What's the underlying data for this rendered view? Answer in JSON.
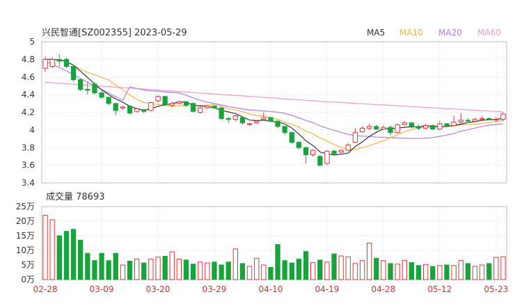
{
  "chart_data": [
    {
      "type": "candlestick",
      "title": "兴民智通[SZ002355] 2023-05-29",
      "ylim": [
        3.4,
        5
      ],
      "yticks": [
        "5",
        "4.8",
        "4.6",
        "4.4",
        "4.2",
        "4",
        "3.8",
        "3.6",
        "3.4"
      ],
      "legend_position": "top-right",
      "legend": [
        "MA5",
        "MA10",
        "MA20",
        "MA60"
      ],
      "colors": {
        "up": "#e0323c",
        "down": "#1aa33c",
        "MA5": "#333333",
        "MA10": "#f2b447",
        "MA20": "#b37be6",
        "MA60": "#f09ac6"
      },
      "x_ticks": [
        "02-28",
        "03-09",
        "03-20",
        "03-29",
        "04-10",
        "04-19",
        "04-28",
        "05-12",
        "05-23"
      ],
      "x_tick_index": [
        0,
        8,
        16,
        24,
        32,
        40,
        48,
        56,
        64
      ],
      "ohlc": [
        [
          4.7,
          4.8,
          4.66,
          4.83
        ],
        [
          4.72,
          4.8,
          4.7,
          4.82
        ],
        [
          4.8,
          4.78,
          4.72,
          4.86
        ],
        [
          4.8,
          4.72,
          4.7,
          4.82
        ],
        [
          4.72,
          4.57,
          4.55,
          4.74
        ],
        [
          4.57,
          4.46,
          4.44,
          4.58
        ],
        [
          4.46,
          4.45,
          4.4,
          4.54
        ],
        [
          4.52,
          4.42,
          4.4,
          4.54
        ],
        [
          4.42,
          4.37,
          4.35,
          4.44
        ],
        [
          4.37,
          4.3,
          4.28,
          4.38
        ],
        [
          4.3,
          4.22,
          4.17,
          4.31
        ],
        [
          4.25,
          4.26,
          4.23,
          4.27
        ],
        [
          4.27,
          4.19,
          4.18,
          4.28
        ],
        [
          4.21,
          4.24,
          4.2,
          4.25
        ],
        [
          4.23,
          4.21,
          4.19,
          4.24
        ],
        [
          4.22,
          4.31,
          4.21,
          4.32
        ],
        [
          4.33,
          4.38,
          4.31,
          4.39
        ],
        [
          4.38,
          4.29,
          4.27,
          4.39
        ],
        [
          4.28,
          4.3,
          4.26,
          4.32
        ],
        [
          4.3,
          4.32,
          4.29,
          4.33
        ],
        [
          4.32,
          4.28,
          4.26,
          4.33
        ],
        [
          4.3,
          4.21,
          4.2,
          4.31
        ],
        [
          4.2,
          4.25,
          4.18,
          4.26
        ],
        [
          4.25,
          4.27,
          4.24,
          4.28
        ],
        [
          4.27,
          4.25,
          4.24,
          4.28
        ],
        [
          4.25,
          4.13,
          4.11,
          4.26
        ],
        [
          4.13,
          4.12,
          4.08,
          4.15
        ],
        [
          4.12,
          4.16,
          4.1,
          4.17
        ],
        [
          4.14,
          4.08,
          4.06,
          4.15
        ],
        [
          4.07,
          4.07,
          4.05,
          4.08
        ],
        [
          4.08,
          4.1,
          4.07,
          4.11
        ],
        [
          4.12,
          4.14,
          4.11,
          4.2
        ],
        [
          4.14,
          4.1,
          4.09,
          4.15
        ],
        [
          4.1,
          4.04,
          4.02,
          4.11
        ],
        [
          4.04,
          3.97,
          3.94,
          4.05
        ],
        [
          3.97,
          3.86,
          3.84,
          3.98
        ],
        [
          3.86,
          3.8,
          3.78,
          3.87
        ],
        [
          3.8,
          3.72,
          3.62,
          3.81
        ],
        [
          3.72,
          3.77,
          3.7,
          3.78
        ],
        [
          3.7,
          3.6,
          3.58,
          3.72
        ],
        [
          3.62,
          3.76,
          3.6,
          3.77
        ],
        [
          3.76,
          3.73,
          3.72,
          3.78
        ],
        [
          3.75,
          3.77,
          3.74,
          3.78
        ],
        [
          3.77,
          3.83,
          3.76,
          3.85
        ],
        [
          3.86,
          3.97,
          3.85,
          4.02
        ],
        [
          3.98,
          4.02,
          3.97,
          4.04
        ],
        [
          4.02,
          4.04,
          4.0,
          4.07
        ],
        [
          4.04,
          4.01,
          4.0,
          4.06
        ],
        [
          4.01,
          4.03,
          4.0,
          4.05
        ],
        [
          4.03,
          3.97,
          3.94,
          4.05
        ],
        [
          3.97,
          4.06,
          3.96,
          4.07
        ],
        [
          4.06,
          4.08,
          4.05,
          4.1
        ],
        [
          4.08,
          4.04,
          4.02,
          4.09
        ],
        [
          4.04,
          4.02,
          4.0,
          4.06
        ],
        [
          4.02,
          4.05,
          4.01,
          4.07
        ],
        [
          4.05,
          4.01,
          4.0,
          4.06
        ],
        [
          4.01,
          4.07,
          4.0,
          4.1
        ],
        [
          4.07,
          4.05,
          4.03,
          4.08
        ],
        [
          4.05,
          4.09,
          4.04,
          4.16
        ],
        [
          4.09,
          4.11,
          4.07,
          4.19
        ],
        [
          4.11,
          4.1,
          4.08,
          4.13
        ],
        [
          4.1,
          4.12,
          4.09,
          4.14
        ],
        [
          4.12,
          4.13,
          4.1,
          4.16
        ],
        [
          4.13,
          4.12,
          4.11,
          4.14
        ],
        [
          4.12,
          4.12,
          4.09,
          4.15
        ],
        [
          4.12,
          4.18,
          4.1,
          4.2
        ]
      ]
    },
    {
      "type": "bar",
      "title": "成交量 78693",
      "ylim": [
        0,
        25
      ],
      "ylabel_unit": "万",
      "yticks": [
        "25万",
        "20万",
        "15万",
        "10万",
        "5万",
        "0万"
      ],
      "values": [
        22,
        20.5,
        15,
        16.5,
        17.2,
        13.5,
        9,
        6.5,
        9,
        6.5,
        9,
        5,
        6.3,
        7,
        5.7,
        7,
        7.7,
        8,
        9.5,
        7,
        6.7,
        5.3,
        6,
        5.7,
        6,
        5,
        6,
        10.5,
        5.5,
        4.5,
        7.3,
        5,
        4.2,
        12,
        6.5,
        5.7,
        7,
        9.6,
        5.8,
        6.7,
        6,
        8.8,
        8.1,
        7.8,
        5.5,
        6.5,
        12.5,
        7.3,
        6.5,
        5.5,
        5.3,
        6.6,
        5.8,
        4.8,
        5.2,
        4.5,
        4.8,
        5,
        4.8,
        6.5,
        5.5,
        4.5,
        5,
        5.5,
        7.6,
        7.8
      ]
    }
  ]
}
